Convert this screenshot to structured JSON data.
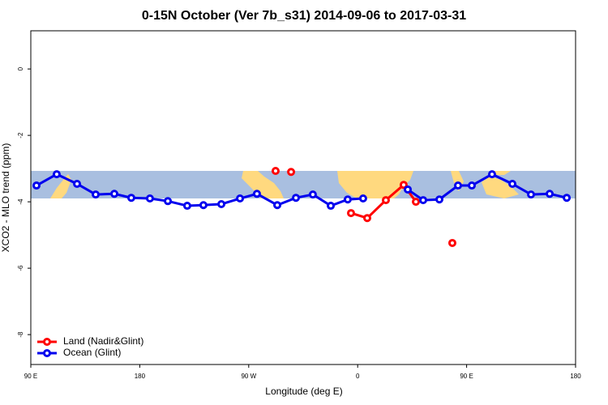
{
  "chart_data": {
    "type": "line",
    "title": "0-15N October (Ver 7b_s31)   2014-09-06 to 2017-03-31",
    "x_label": "Longitude (deg E)",
    "y_label": "XCO2 - MLO trend (ppm)",
    "xlim": [
      90,
      540
    ],
    "xticks": [
      {
        "value": 90,
        "label": "90 E"
      },
      {
        "value": 180,
        "label": "180"
      },
      {
        "value": 270,
        "label": "90 W"
      },
      {
        "value": 360,
        "label": "0"
      },
      {
        "value": 450,
        "label": "90 E"
      },
      {
        "value": 540,
        "label": "180"
      }
    ],
    "ylim": [
      -8.9,
      1.15
    ],
    "yticks": [
      0,
      -2,
      -4,
      -6,
      -8
    ],
    "legend": "bottom-left",
    "series": [
      {
        "name": "Land (Nadir&Glint)",
        "color": "#ff0000",
        "x": [
          292.2,
          298.6,
          305,
          330,
          354.5,
          367.9,
          383.3,
          398,
          408.1,
          423,
          438.2
        ],
        "values": [
          -3.07,
          null,
          -3.1,
          null,
          -4.34,
          -4.49,
          -3.95,
          -3.49,
          -4.0,
          null,
          -5.24
        ]
      },
      {
        "name": "Ocean (Glint)",
        "color": "#0000ee",
        "x": [
          94.7,
          111.4,
          128.2,
          143.6,
          159,
          173,
          188.4,
          203.2,
          219.2,
          232.6,
          247.4,
          262.8,
          276.8,
          293.6,
          309,
          323,
          337.8,
          351.8,
          364.5,
          383,
          401.4,
          414.1,
          427.5,
          442.9,
          454.3,
          471,
          487.8,
          503.2,
          518.6,
          532.7
        ],
        "values": [
          -3.51,
          -3.17,
          -3.46,
          -3.78,
          -3.76,
          -3.88,
          -3.9,
          -3.98,
          -4.12,
          -4.1,
          -4.07,
          -3.9,
          -3.76,
          -4.1,
          -3.88,
          -3.78,
          -4.12,
          -3.93,
          -3.9,
          null,
          -3.63,
          -3.95,
          -3.93,
          -3.51,
          -3.51,
          -3.17,
          -3.46,
          -3.78,
          -3.76,
          -3.88
        ]
      }
    ]
  }
}
